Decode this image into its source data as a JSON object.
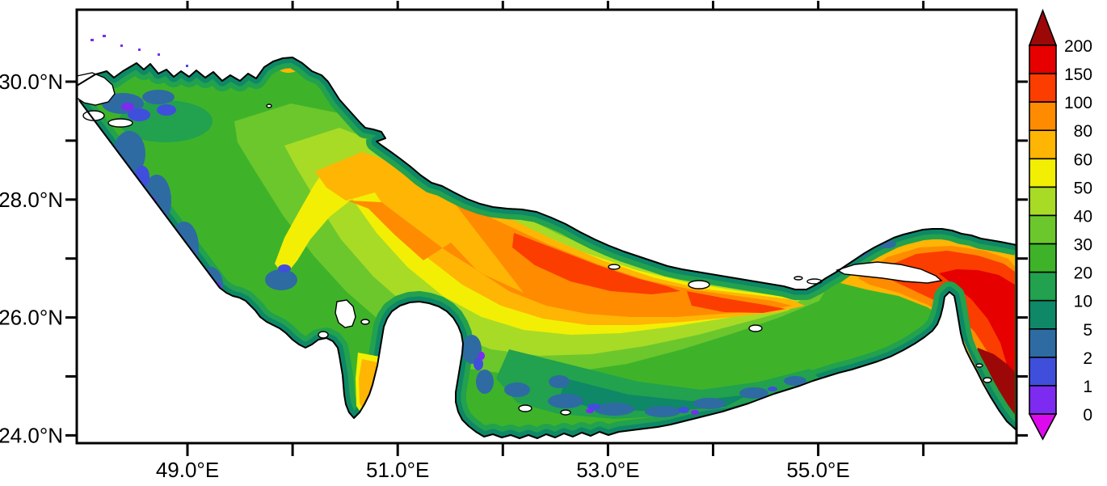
{
  "page": {
    "background": "#ffffff"
  },
  "chart_data": {
    "type": "heatmap",
    "title": "",
    "region": "Persian Gulf (Arabian Gulf) with Strait of Hormuz and western Gulf of Oman",
    "projection": "longitude-latitude map, discrete filled contours over white land",
    "x_axis": {
      "labels": [
        "49.0°E",
        "51.0°E",
        "53.0°E",
        "55.0°E"
      ],
      "labeled_ticks_deg": [
        49,
        51,
        53,
        55
      ],
      "minor_ticks_deg": [
        50,
        52,
        54,
        56
      ],
      "range_deg": [
        48.0,
        56.9
      ],
      "ticks_on": "bottom and top, pointing outward"
    },
    "y_axis": {
      "labels": [
        "30.0°N",
        "28.0°N",
        "26.0°N",
        "24.0°N"
      ],
      "labeled_ticks_deg": [
        30,
        28,
        26,
        24
      ],
      "minor_ticks_deg": [
        29,
        27,
        25
      ],
      "range_deg": [
        23.9,
        31.2
      ],
      "ticks_on": "left and right, pointing outward"
    },
    "grid": false,
    "colorbar": {
      "position": "right",
      "boundary_labels": [
        "200",
        "150",
        "100",
        "80",
        "60",
        "50",
        "40",
        "30",
        "20",
        "10",
        "5",
        "2",
        "1",
        "0"
      ],
      "segments_top_to_bottom": [
        {
          "range": "150-200",
          "color": "#e60000"
        },
        {
          "range": "100-150",
          "color": "#fb3d00"
        },
        {
          "range": "80-100",
          "color": "#ff8b00"
        },
        {
          "range": "60-80",
          "color": "#ffb504"
        },
        {
          "range": "50-60",
          "color": "#f2ef04"
        },
        {
          "range": "40-50",
          "color": "#a8db26"
        },
        {
          "range": "30-40",
          "color": "#6cc72c"
        },
        {
          "range": "20-30",
          "color": "#3eb32a"
        },
        {
          "range": "10-20",
          "color": "#22a14e"
        },
        {
          "range": "5-10",
          "color": "#0e8866"
        },
        {
          "range": "2-5",
          "color": "#2e6ba2"
        },
        {
          "range": "1-2",
          "color": "#3f4fdb"
        },
        {
          "range": "0-1",
          "color": "#7d2bf0"
        }
      ],
      "over_arrow_color": "#9c0808",
      "under_arrow_color": "#dd0aee"
    },
    "palette": {
      "0-1": "#7d2bf0",
      "1-2": "#3f4fdb",
      "2-5": "#2e6ba2",
      "5-10": "#0e8866",
      "10-20": "#22a14e",
      "20-30": "#3eb32a",
      "30-40": "#6cc72c",
      "40-50": "#a8db26",
      "50-60": "#f2ef04",
      "60-80": "#ffb504",
      "80-100": "#ff8b00",
      "100-150": "#fb3d00",
      "150-200": "#e60000",
      "over": "#9c0808",
      "under": "#dd0aee",
      "land": "#ffffff",
      "coastline": "#000000"
    },
    "sample_points": [
      {
        "lon": 48.8,
        "lat": 29.6,
        "value_range": "10-30"
      },
      {
        "lon": 49.3,
        "lat": 27.6,
        "value_range": "0-5 (blue/violet coastal fringe)"
      },
      {
        "lon": 50.4,
        "lat": 28.3,
        "value_range": "40-60"
      },
      {
        "lon": 50.6,
        "lat": 28.9,
        "value_range": "60-100 (local deep patch)"
      },
      {
        "lon": 51.2,
        "lat": 24.7,
        "value_range": "60-80 (Gulf of Salwa strip)"
      },
      {
        "lon": 52.0,
        "lat": 26.9,
        "value_range": "80-100"
      },
      {
        "lon": 53.0,
        "lat": 26.3,
        "value_range": "100-150 (deep channel)"
      },
      {
        "lon": 53.5,
        "lat": 24.3,
        "value_range": "0-20 (shallow southern coast)"
      },
      {
        "lon": 56.2,
        "lat": 26.4,
        "value_range": "150-200 (Strait of Hormuz)"
      },
      {
        "lon": 56.6,
        "lat": 24.9,
        "value_range": ">200 (Gulf of Oman, dark red)"
      }
    ]
  }
}
